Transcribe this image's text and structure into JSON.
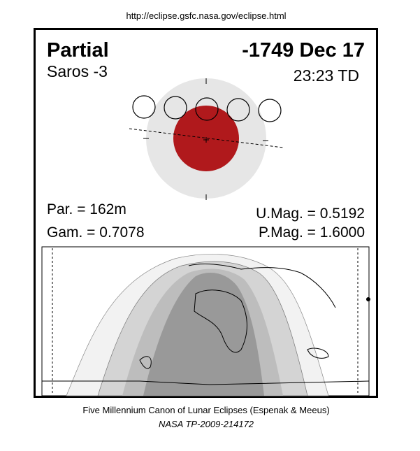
{
  "header": {
    "url": "http://eclipse.gsfc.nasa.gov/eclipse.html"
  },
  "panel": {
    "type": "Partial",
    "date": "-1749 Dec 17",
    "saros": "Saros  -3",
    "time": "23:23 TD",
    "parameters": {
      "par": "Par. = 162m",
      "gam": "Gam. = 0.7078",
      "umag": "U.Mag. = 0.5192",
      "pmag": "P.Mag. = 1.6000"
    }
  },
  "footer": {
    "line1": "Five Millennium Canon of Lunar Eclipses (Espenak & Meeus)",
    "line2": "NASA TP-2009-214172"
  }
}
